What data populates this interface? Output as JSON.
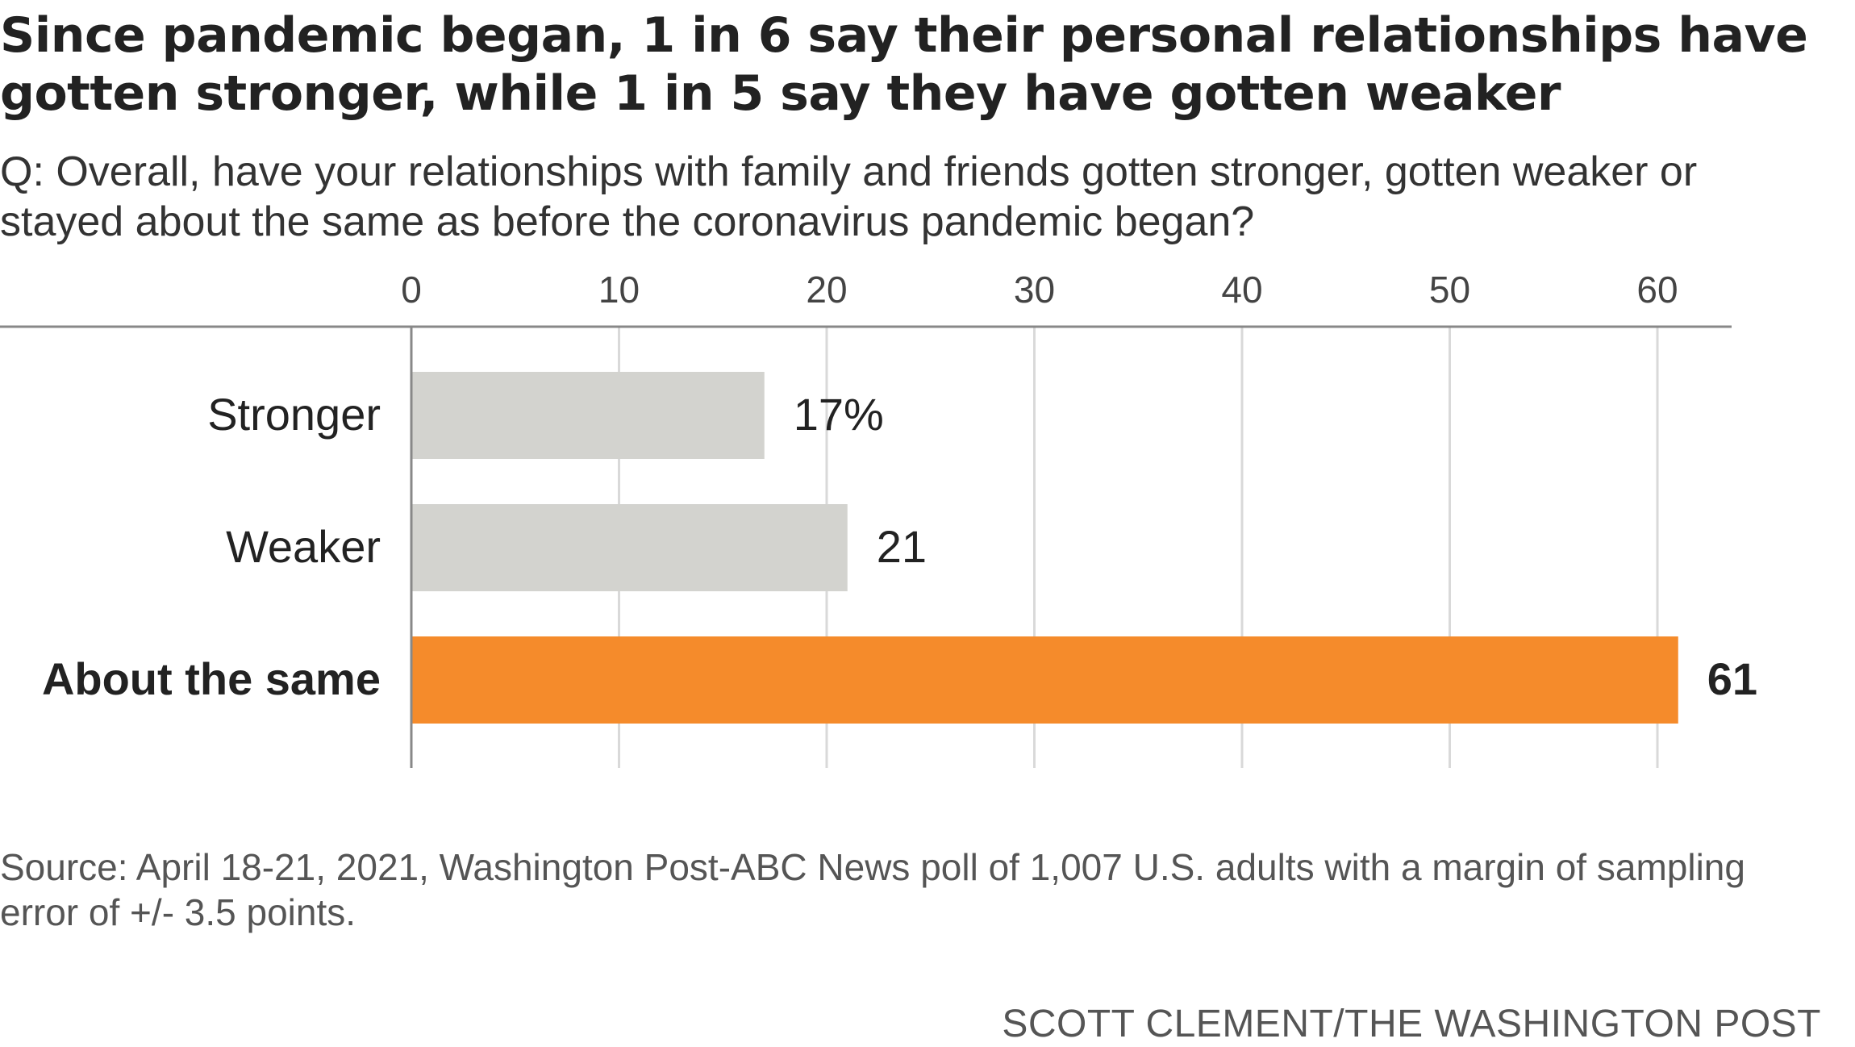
{
  "chart_data": {
    "type": "bar",
    "orientation": "horizontal",
    "title": "Since pandemic began, 1 in 6 say their personal relationships have gotten stronger, while 1 in 5 say they have gotten weaker",
    "subtitle": "Q: Overall, have your relationships with family and friends gotten stronger, gotten weaker or stayed about the same as before the coronavirus pandemic began?",
    "categories": [
      "Stronger",
      "Weaker",
      "About the same"
    ],
    "values": [
      17,
      21,
      61
    ],
    "value_labels": [
      "17%",
      "21",
      "61"
    ],
    "highlight": [
      false,
      false,
      true
    ],
    "xlim": [
      0,
      60
    ],
    "x_ticks": [
      0,
      10,
      20,
      30,
      40,
      50,
      60
    ],
    "x_tick_labels": [
      "0",
      "10",
      "20",
      "30",
      "40",
      "50",
      "60"
    ],
    "axis_position": "top",
    "grid": true,
    "legend": "none",
    "colors": {
      "default_bar": "#d3d3cf",
      "highlight_bar": "#f58b2b",
      "gridline": "#d9d9d9",
      "axis": "#888888"
    },
    "source_note": "Source: April 18-21, 2021, Washington Post-ABC News poll of 1,007 U.S. adults with a margin of sampling error of +/- 3.5 points.",
    "credit": "SCOTT CLEMENT/THE WASHINGTON POST"
  }
}
